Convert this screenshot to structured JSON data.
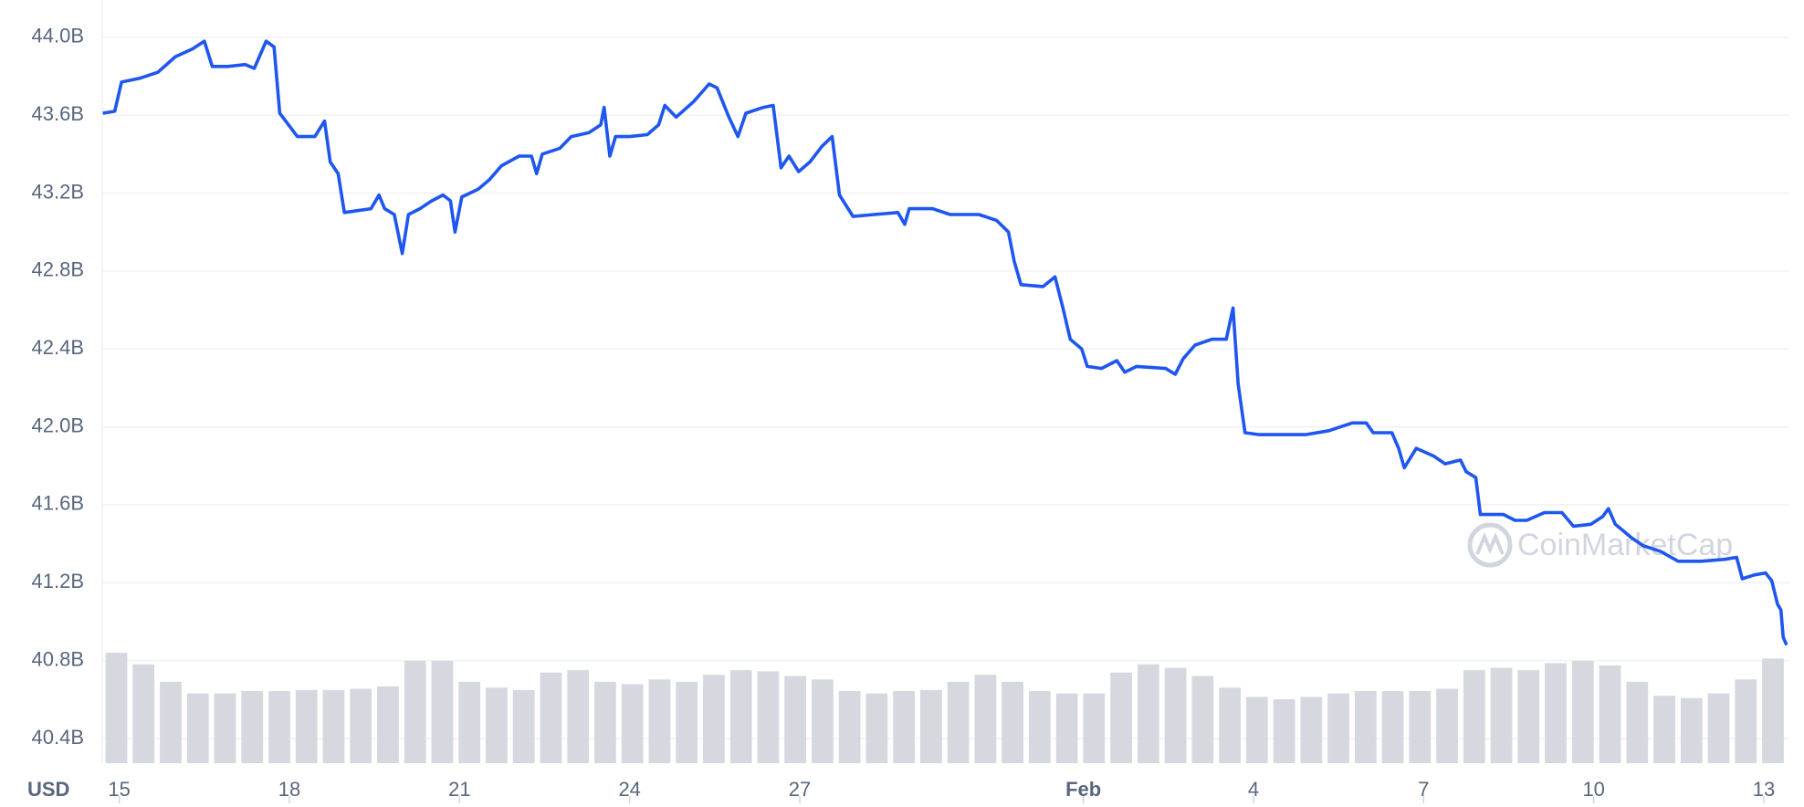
{
  "chart_data": {
    "type": "line",
    "y_unit_label": "USD",
    "watermark": "CoinMarketCap",
    "grid": true,
    "xlim": [
      14.7,
      44.45
    ],
    "xticks": [
      15,
      18,
      21,
      24,
      27,
      {
        "value": 32,
        "label": "Feb"
      },
      {
        "value": 35,
        "label": "4"
      },
      {
        "value": 38,
        "label": "7"
      },
      {
        "value": 41,
        "label": "10"
      },
      {
        "value": 44,
        "label": "13"
      }
    ],
    "ylim": [
      40.4,
      44.0
    ],
    "yticks": [
      {
        "value": 40.4,
        "label": "40.4B"
      },
      {
        "value": 40.8,
        "label": "40.8B"
      },
      {
        "value": 41.2,
        "label": "41.2B"
      },
      {
        "value": 41.6,
        "label": "41.6B"
      },
      {
        "value": 42.0,
        "label": "42.0B"
      },
      {
        "value": 42.4,
        "label": "42.4B"
      },
      {
        "value": 42.8,
        "label": "42.8B"
      },
      {
        "value": 43.2,
        "label": "43.2B"
      },
      {
        "value": 43.6,
        "label": "43.6B"
      },
      {
        "value": 44.0,
        "label": "44.0B"
      }
    ],
    "x": [
      14.71,
      14.92,
      15.04,
      15.37,
      15.68,
      15.99,
      16.29,
      16.5,
      16.64,
      16.91,
      17.22,
      17.38,
      17.59,
      17.73,
      17.83,
      18.14,
      18.45,
      18.62,
      18.72,
      18.86,
      18.97,
      19.44,
      19.58,
      19.68,
      19.85,
      19.99,
      20.1,
      20.3,
      20.51,
      20.71,
      20.84,
      20.92,
      21.04,
      21.33,
      21.53,
      21.74,
      22.05,
      22.27,
      22.36,
      22.46,
      22.77,
      22.97,
      23.28,
      23.49,
      23.55,
      23.65,
      23.75,
      24.0,
      24.31,
      24.51,
      24.62,
      24.82,
      25.13,
      25.4,
      25.54,
      25.75,
      25.91,
      26.05,
      26.36,
      26.53,
      26.67,
      26.81,
      26.98,
      27.18,
      27.39,
      27.57,
      27.7,
      27.94,
      28.31,
      28.73,
      28.85,
      28.93,
      29.34,
      29.65,
      30.16,
      30.47,
      30.68,
      30.78,
      30.9,
      31.29,
      31.5,
      31.64,
      31.77,
      31.97,
      32.07,
      32.32,
      32.59,
      32.73,
      32.94,
      33.45,
      33.62,
      33.76,
      33.97,
      34.27,
      34.52,
      34.64,
      34.73,
      34.85,
      35.1,
      35.51,
      35.92,
      36.33,
      36.74,
      36.99,
      37.11,
      37.44,
      37.56,
      37.66,
      37.87,
      38.18,
      38.38,
      38.65,
      38.75,
      38.92,
      39.0,
      39.41,
      39.61,
      39.82,
      40.13,
      40.44,
      40.64,
      40.95,
      41.16,
      41.26,
      41.38,
      41.67,
      41.87,
      42.18,
      42.49,
      42.9,
      43.31,
      43.52,
      43.62,
      43.83,
      44.03,
      44.14,
      44.24,
      44.3,
      44.34,
      44.4
    ],
    "series": [
      {
        "color": "#1e56f0",
        "values": [
          43.61,
          43.62,
          43.77,
          43.79,
          43.82,
          43.9,
          43.94,
          43.98,
          43.85,
          43.85,
          43.86,
          43.84,
          43.98,
          43.95,
          43.61,
          43.49,
          43.49,
          43.57,
          43.36,
          43.3,
          43.1,
          43.12,
          43.19,
          43.12,
          43.09,
          42.89,
          43.09,
          43.12,
          43.16,
          43.19,
          43.16,
          43.0,
          43.18,
          43.22,
          43.27,
          43.34,
          43.39,
          43.39,
          43.3,
          43.4,
          43.43,
          43.49,
          43.51,
          43.55,
          43.64,
          43.39,
          43.49,
          43.49,
          43.5,
          43.55,
          43.65,
          43.59,
          43.67,
          43.76,
          43.74,
          43.59,
          43.49,
          43.61,
          43.64,
          43.65,
          43.33,
          43.39,
          43.31,
          43.36,
          43.44,
          43.49,
          43.19,
          43.08,
          43.09,
          43.1,
          43.04,
          43.12,
          43.12,
          43.09,
          43.09,
          43.06,
          43.0,
          42.85,
          42.73,
          42.72,
          42.77,
          42.61,
          42.45,
          42.4,
          42.31,
          42.3,
          42.34,
          42.28,
          42.31,
          42.3,
          42.27,
          42.35,
          42.42,
          42.45,
          42.45,
          42.61,
          42.22,
          41.97,
          41.96,
          41.96,
          41.96,
          41.98,
          42.02,
          42.02,
          41.97,
          41.97,
          41.89,
          41.79,
          41.89,
          41.85,
          41.81,
          41.83,
          41.77,
          41.74,
          41.55,
          41.55,
          41.52,
          41.52,
          41.56,
          41.56,
          41.49,
          41.5,
          41.54,
          41.58,
          41.5,
          41.43,
          41.39,
          41.36,
          41.31,
          41.31,
          41.32,
          41.33,
          41.22,
          41.24,
          41.25,
          41.21,
          41.09,
          41.06,
          40.92,
          40.88
        ]
      }
    ],
    "volume": {
      "color": "#d5d9df",
      "values": [
        95,
        85,
        70,
        60,
        60,
        62,
        62,
        63,
        63,
        64,
        66,
        88,
        88,
        70,
        65,
        63,
        78,
        80,
        70,
        68,
        72,
        70,
        76,
        80,
        79,
        75,
        72,
        62,
        60,
        62,
        63,
        70,
        76,
        70,
        62,
        60,
        60,
        78,
        85,
        82,
        75,
        65,
        57,
        55,
        57,
        60,
        62,
        62,
        62,
        64,
        80,
        82,
        80,
        86,
        88,
        84,
        70,
        58,
        56,
        60,
        72,
        90
      ]
    }
  }
}
